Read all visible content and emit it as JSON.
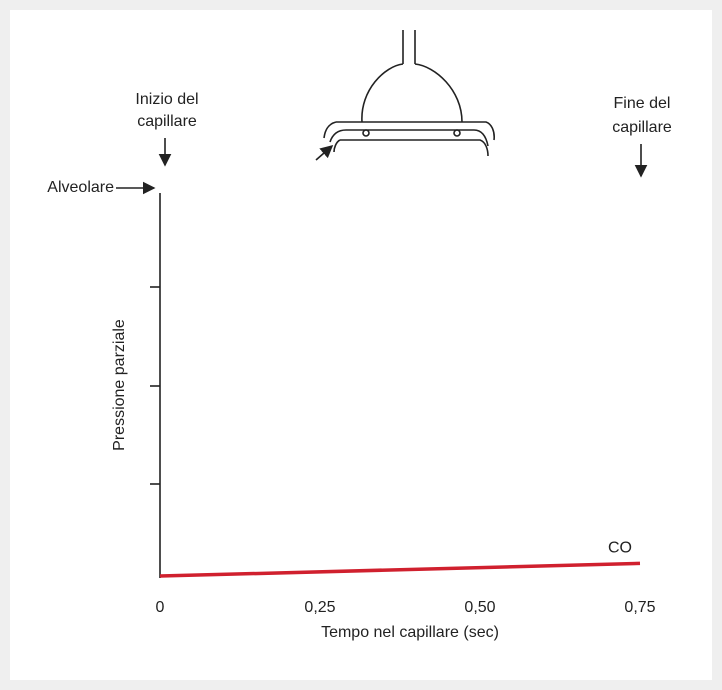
{
  "chart_data": {
    "type": "line",
    "x_label": "Tempo nel capillare (sec)",
    "y_label": "Pressione parziale",
    "xlim": [
      0,
      0.75
    ],
    "xticks": [
      0,
      {
        "value": 0.25,
        "label": "0,25"
      },
      {
        "value": 0.5,
        "label": "0,50"
      },
      {
        "value": 0.75,
        "label": "0,75"
      }
    ],
    "ylim": [
      0,
      4
    ],
    "grid": false,
    "x": [
      0,
      0.75
    ],
    "series": [
      {
        "name": "CO",
        "color": "#d0202e",
        "values": [
          0.02,
          0.15
        ]
      }
    ],
    "annotations": [
      {
        "lines": [
          "Inizio del",
          "capillare"
        ]
      },
      {
        "lines": [
          "Fine del",
          "capillare"
        ]
      },
      {
        "lines": [
          "Alveolare"
        ]
      }
    ]
  }
}
